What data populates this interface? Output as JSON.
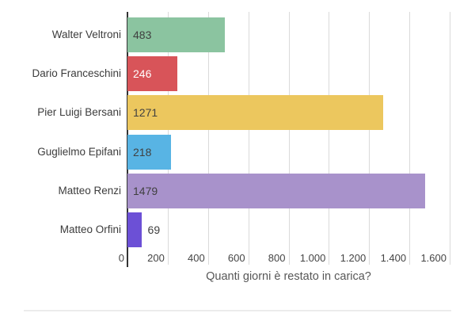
{
  "chart_data": {
    "type": "bar",
    "orientation": "horizontal",
    "xlabel": "Quanti giorni è restato in carica?",
    "categories": [
      "Walter Veltroni",
      "Dario Franceschini",
      "Pier Luigi Bersani",
      "Guglielmo Epifani",
      "Matteo Renzi",
      "Matteo Orfini"
    ],
    "values": [
      483,
      246,
      1271,
      218,
      1479,
      69
    ],
    "value_labels": [
      "483",
      "246",
      "1271",
      "218",
      "1479",
      "69"
    ],
    "bar_colors": [
      "#8BC4A0",
      "#D85459",
      "#ECC75E",
      "#58B4E4",
      "#A892CB",
      "#6C50D6"
    ],
    "value_label_colors": [
      "#404040",
      "#FFFFFF",
      "#404040",
      "#404040",
      "#404040",
      "#404040"
    ],
    "value_label_positions": [
      "inside",
      "inside",
      "inside",
      "inside",
      "inside",
      "outside"
    ],
    "xlim": [
      0,
      1600
    ],
    "tick_values": [
      0,
      200,
      400,
      600,
      800,
      1000,
      1200,
      1400,
      1600
    ],
    "tick_labels": [
      "0",
      "200",
      "400",
      "600",
      "800",
      "1.000",
      "1.200",
      "1.400",
      "1.600"
    ],
    "grid": true,
    "legend": "none"
  },
  "colors": {
    "axis_line": "#333333",
    "gridline": "#dadada",
    "background": "#ffffff",
    "divider": "#ececec"
  }
}
